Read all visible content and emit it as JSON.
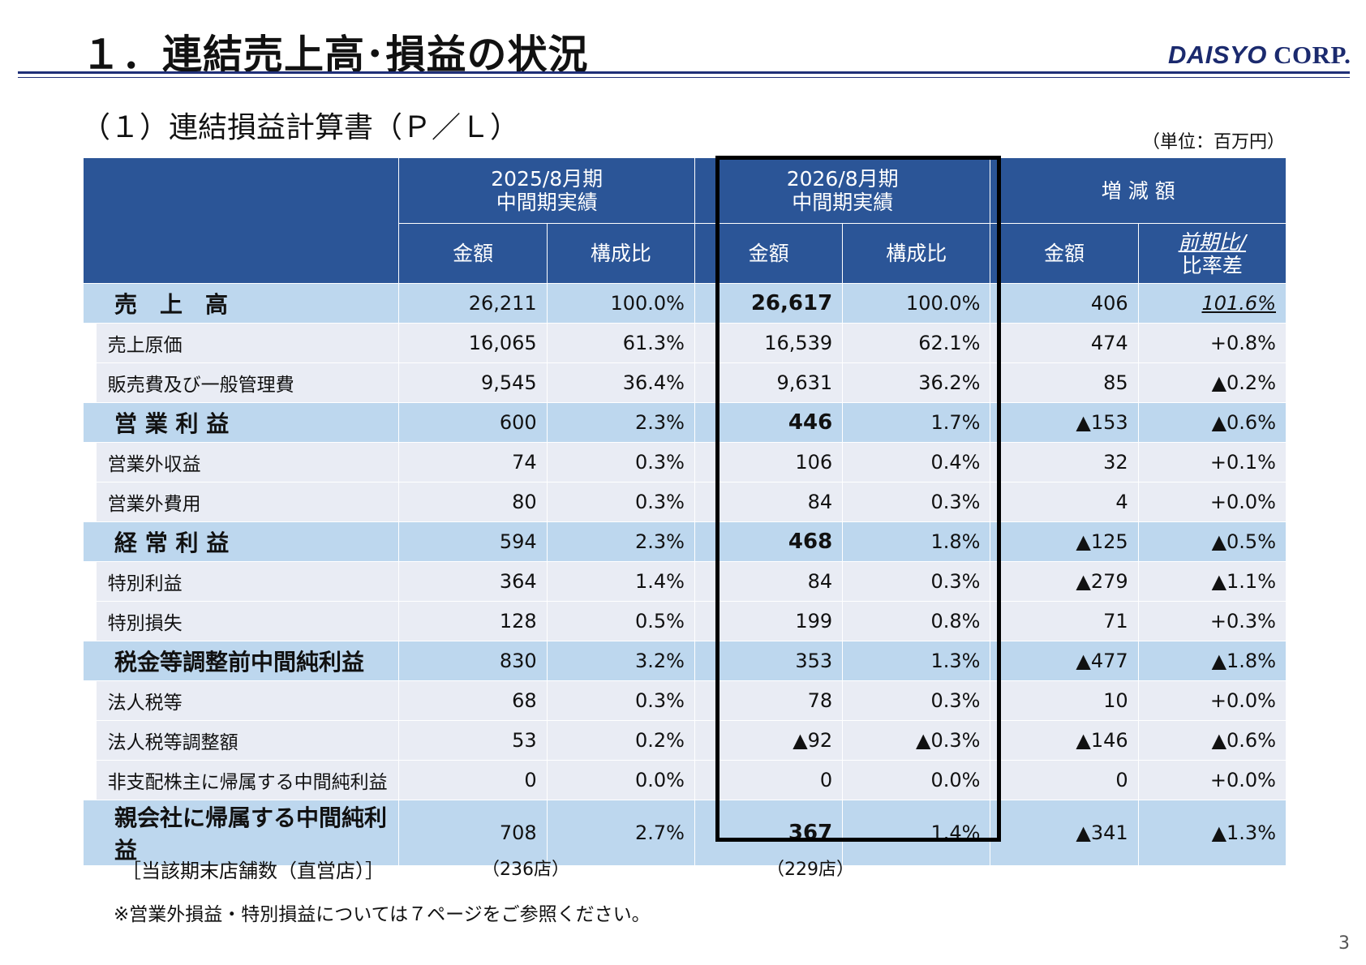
{
  "title": "１．連結売上高･損益の状況",
  "logo": {
    "part1": "DAISYO",
    "part2": " CORP."
  },
  "subtitle": "（１）連結損益計算書（Ｐ／Ｌ）",
  "unit": "（単位：百万円）",
  "header": {
    "prev": {
      "line1": "2025/8月期",
      "line2": "中間期実績"
    },
    "curr": {
      "line1": "2026/8月期",
      "line2": "中間期実績"
    },
    "diff": "増 減 額",
    "amount": "金額",
    "ratio": "構成比",
    "yoy_line1": "前期比/",
    "yoy_line2": "比率差"
  },
  "rows": [
    {
      "type": "main",
      "label": "売　上　高",
      "prev_amount": "26,211",
      "prev_ratio": "100.0%",
      "curr_amount": "26,617",
      "curr_ratio": "100.0%",
      "diff_amount": "406",
      "diff_ratio": "101.6%"
    },
    {
      "type": "sub",
      "label": "売上原価",
      "prev_amount": "16,065",
      "prev_ratio": "61.3%",
      "curr_amount": "16,539",
      "curr_ratio": "62.1%",
      "diff_amount": "474",
      "diff_ratio": "+0.8%"
    },
    {
      "type": "sub",
      "label": "販売費及び一般管理費",
      "prev_amount": "9,545",
      "prev_ratio": "36.4%",
      "curr_amount": "9,631",
      "curr_ratio": "36.2%",
      "diff_amount": "85",
      "diff_ratio": "▲0.2%"
    },
    {
      "type": "main",
      "label": "営 業 利 益",
      "prev_amount": "600",
      "prev_ratio": "2.3%",
      "curr_amount": "446",
      "curr_ratio": "1.7%",
      "diff_amount": "▲153",
      "diff_ratio": "▲0.6%"
    },
    {
      "type": "sub",
      "label": "営業外収益",
      "prev_amount": "74",
      "prev_ratio": "0.3%",
      "curr_amount": "106",
      "curr_ratio": "0.4%",
      "diff_amount": "32",
      "diff_ratio": "+0.1%"
    },
    {
      "type": "sub",
      "label": "営業外費用",
      "prev_amount": "80",
      "prev_ratio": "0.3%",
      "curr_amount": "84",
      "curr_ratio": "0.3%",
      "diff_amount": "4",
      "diff_ratio": "+0.0%"
    },
    {
      "type": "main",
      "label": "経 常 利 益",
      "prev_amount": "594",
      "prev_ratio": "2.3%",
      "curr_amount": "468",
      "curr_ratio": "1.8%",
      "diff_amount": "▲125",
      "diff_ratio": "▲0.5%"
    },
    {
      "type": "sub",
      "label": "特別利益",
      "prev_amount": "364",
      "prev_ratio": "1.4%",
      "curr_amount": "84",
      "curr_ratio": "0.3%",
      "diff_amount": "▲279",
      "diff_ratio": "▲1.1%"
    },
    {
      "type": "sub",
      "label": "特別損失",
      "prev_amount": "128",
      "prev_ratio": "0.5%",
      "curr_amount": "199",
      "curr_ratio": "0.8%",
      "diff_amount": "71",
      "diff_ratio": "+0.3%"
    },
    {
      "type": "main",
      "label": "税金等調整前中間純利益",
      "prev_amount": "830",
      "prev_ratio": "3.2%",
      "curr_amount": "353",
      "curr_ratio": "1.3%",
      "diff_amount": "▲477",
      "diff_ratio": "▲1.8%"
    },
    {
      "type": "sub",
      "label": "法人税等",
      "prev_amount": "68",
      "prev_ratio": "0.3%",
      "curr_amount": "78",
      "curr_ratio": "0.3%",
      "diff_amount": "10",
      "diff_ratio": "+0.0%"
    },
    {
      "type": "sub",
      "label": "法人税等調整額",
      "prev_amount": "53",
      "prev_ratio": "0.2%",
      "curr_amount": "▲92",
      "curr_ratio": "▲0.3%",
      "diff_amount": "▲146",
      "diff_ratio": "▲0.6%"
    },
    {
      "type": "sub",
      "label": "非支配株主に帰属する中間純利益",
      "prev_amount": "0",
      "prev_ratio": "0.0%",
      "curr_amount": "0",
      "curr_ratio": "0.0%",
      "diff_amount": "0",
      "diff_ratio": "+0.0%"
    },
    {
      "type": "main",
      "label": "親会社に帰属する中間純利益",
      "prev_amount": "708",
      "prev_ratio": "2.7%",
      "curr_amount": "367",
      "curr_ratio": "1.4%",
      "diff_amount": "▲341",
      "diff_ratio": "▲1.3%"
    }
  ],
  "stores": {
    "label": "［当該期末店舗数（直営店）］",
    "prev": "（236店）",
    "curr": "（229店）"
  },
  "note": "※営業外損益・特別損益については７ページをご参照ください。",
  "page_number": "3"
}
